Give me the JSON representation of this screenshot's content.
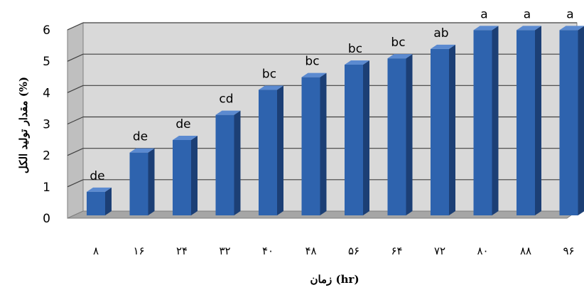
{
  "chart_data": {
    "type": "bar",
    "categories": [
      "۸",
      "۱۶",
      "۲۴",
      "۳۲",
      "۴۰",
      "۴۸",
      "۵۶",
      "۶۴",
      "۷۲",
      "۸۰",
      "۸۸",
      "۹۶"
    ],
    "values": [
      0.75,
      2.0,
      2.4,
      3.2,
      4.0,
      4.4,
      4.8,
      5.0,
      5.3,
      5.9,
      5.9,
      5.9
    ],
    "data_labels": [
      "de",
      "de",
      "de",
      "cd",
      "bc",
      "bc",
      "bc",
      "bc",
      "ab",
      "a",
      "a",
      "a"
    ],
    "xlabel": "زمان (hr)",
    "ylabel": "مقدار تولید الکل (%)",
    "ylim": [
      0,
      6
    ],
    "yticks": [
      "0",
      "1",
      "2",
      "3",
      "4",
      "5",
      "6"
    ],
    "grid": true,
    "style": "3d-column",
    "colors": {
      "bar_front": "#2e63ae",
      "bar_side": "#1c3f75",
      "bar_top": "#5b8ad0",
      "wall": "#d9d9d9",
      "floor": "#a6a6a6",
      "grid": "#404040"
    }
  }
}
